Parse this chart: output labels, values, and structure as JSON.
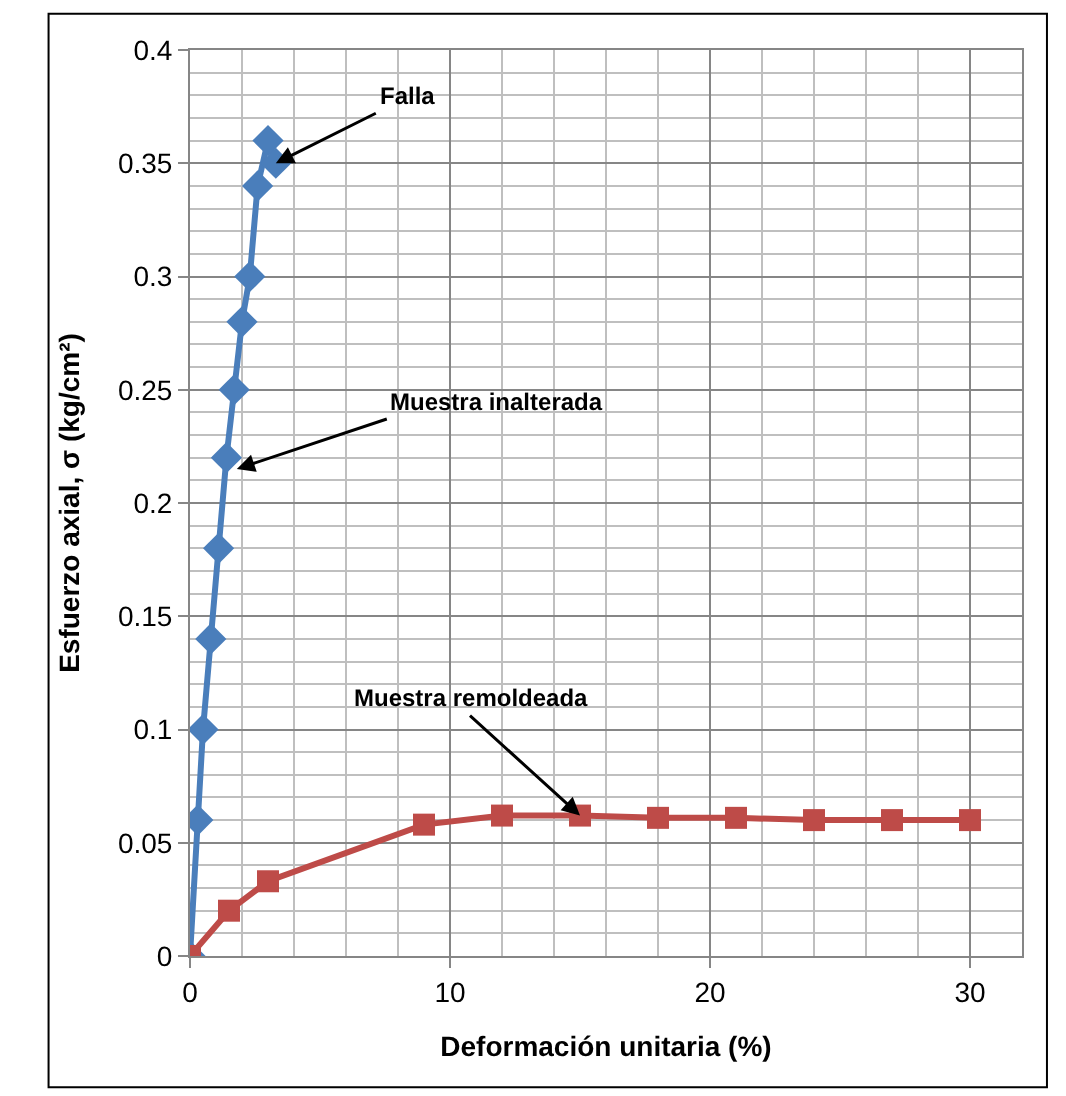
{
  "chart_data": {
    "type": "line",
    "xlabel": "Deformación unitaria (%)",
    "ylabel": "Esfuerzo axial, σ (kg/cm²)",
    "series": [
      {
        "color": "#4a7ebb",
        "marker": "diamond",
        "x": [
          0,
          0.3,
          0.5,
          0.8,
          1.1,
          1.4,
          1.7,
          2.0,
          2.3,
          2.6,
          3.0,
          3.3
        ],
        "values": [
          0,
          0.06,
          0.1,
          0.14,
          0.18,
          0.22,
          0.25,
          0.28,
          0.3,
          0.34,
          0.36,
          0.35
        ]
      },
      {
        "color": "#be4b48",
        "marker": "square",
        "x": [
          0,
          1.5,
          3,
          9,
          12,
          15,
          18,
          21,
          24,
          27,
          30
        ],
        "values": [
          0,
          0.02,
          0.033,
          0.058,
          0.062,
          0.062,
          0.061,
          0.061,
          0.06,
          0.06,
          0.06
        ]
      }
    ],
    "annotations": [
      {
        "text": "Falla",
        "x": 3.3,
        "y": 0.35
      },
      {
        "text": "Muestra inalterada",
        "x": 1.8,
        "y": 0.215
      },
      {
        "text": "Muestra remoldeada",
        "x": 15,
        "y": 0.062
      }
    ],
    "xlim": [
      0,
      32
    ],
    "xticks": [
      0,
      10,
      20,
      30
    ],
    "ylim": [
      0,
      0.4
    ],
    "yticks": [
      0,
      0.05,
      0.1,
      0.15,
      0.2,
      0.25,
      0.3,
      0.35,
      0.4
    ],
    "grid": true
  }
}
